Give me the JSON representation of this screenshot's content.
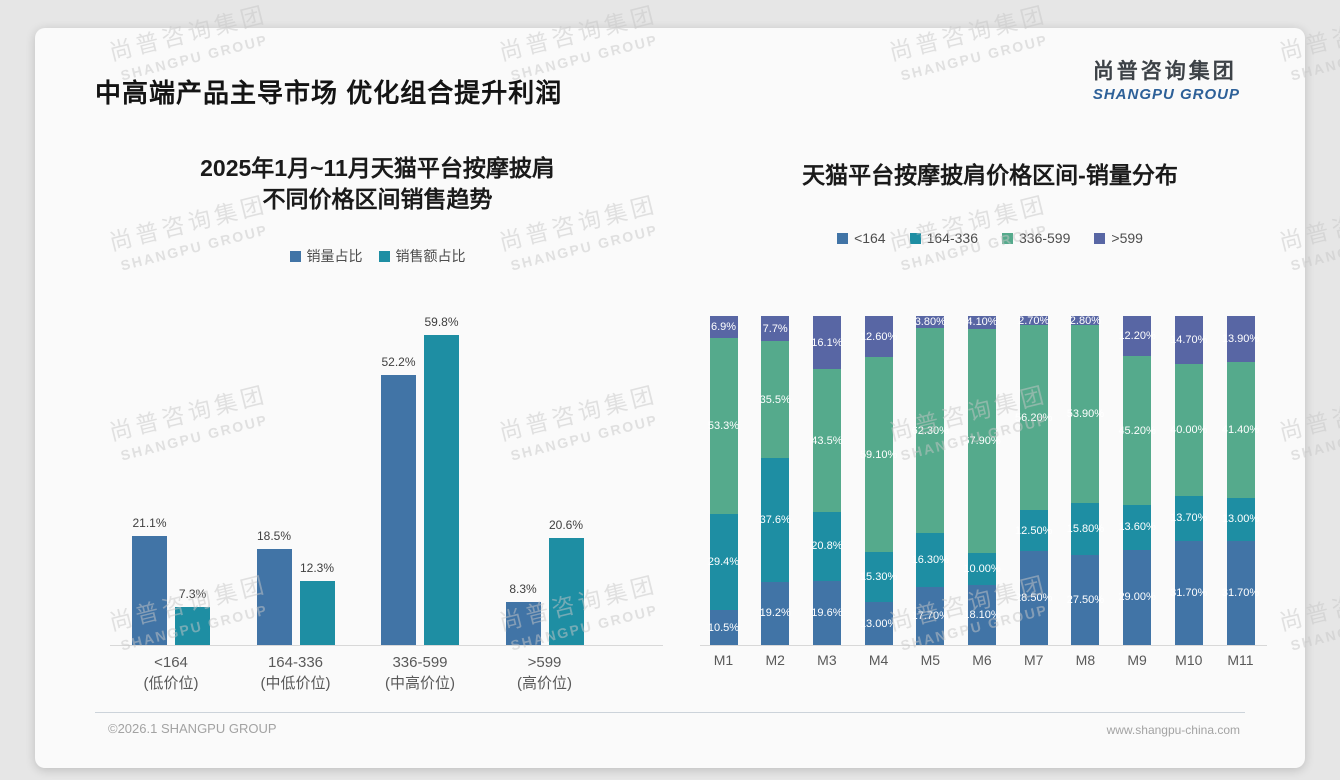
{
  "header": {
    "title": "中高端产品主导市场 优化组合提升利润",
    "logo_cn": "尚普咨询集团",
    "logo_en": "SHANGPU GROUP"
  },
  "watermark": {
    "cn": "尚普咨询集团",
    "en": "SHANGPU GROUP"
  },
  "footer": {
    "copyright": "©2026.1 SHANGPU GROUP",
    "website": "www.shangpu-china.com"
  },
  "chart_data": [
    {
      "id": "price-range-sales-trend",
      "type": "bar",
      "title_lines": [
        "2025年1月~11月天猫平台按摩披肩",
        "不同价格区间销售趋势"
      ],
      "categories": [
        "<164",
        "164-336",
        "336-599",
        ">599"
      ],
      "category_sublabels": [
        "(低价位)",
        "(中低价位)",
        "(中高价位)",
        "(高价位)"
      ],
      "series": [
        {
          "name": "销量占比",
          "color": "#4174A6",
          "values": [
            21.1,
            18.5,
            52.2,
            8.3
          ],
          "labels": [
            "21.1%",
            "18.5%",
            "52.2%",
            "8.3%"
          ]
        },
        {
          "name": "销售额占比",
          "color": "#1E8EA3",
          "values": [
            7.3,
            12.3,
            59.8,
            20.6
          ],
          "labels": [
            "7.3%",
            "12.3%",
            "59.8%",
            "20.6%"
          ]
        }
      ],
      "xlabel": "",
      "ylabel": "",
      "ylim": [
        0,
        64
      ],
      "grid": false,
      "legend_position": "top",
      "value_suffix": "%"
    },
    {
      "id": "monthly-price-range-volume-mix",
      "type": "stacked-bar",
      "title": "天猫平台按摩披肩价格区间-销量分布",
      "categories": [
        "M1",
        "M2",
        "M3",
        "M4",
        "M5",
        "M6",
        "M7",
        "M8",
        "M9",
        "M10",
        "M11"
      ],
      "series": [
        {
          "name": "<164",
          "color": "#4174A6",
          "values": [
            10.5,
            19.2,
            19.6,
            13.0,
            17.7,
            18.1,
            28.5,
            27.5,
            29.0,
            31.7,
            31.7
          ],
          "labels": [
            "10.5%",
            "19.2%",
            "19.6%",
            "13.00%",
            "17.70%",
            "18.10%",
            "28.50%",
            "27.50%",
            "29.00%",
            "31.70%",
            "31.70%"
          ]
        },
        {
          "name": "164-336",
          "color": "#1E8EA3",
          "values": [
            29.4,
            37.6,
            20.8,
            15.3,
            16.3,
            10.0,
            12.5,
            15.8,
            13.6,
            13.7,
            13.0
          ],
          "labels": [
            "29.4%",
            "37.6%",
            "20.8%",
            "15.30%",
            "16.30%",
            "10.00%",
            "12.50%",
            "15.80%",
            "13.60%",
            "13.70%",
            "13.00%"
          ]
        },
        {
          "name": "336-599",
          "color": "#55AA8C",
          "values": [
            53.3,
            35.5,
            43.5,
            59.1,
            62.3,
            67.9,
            56.2,
            53.9,
            45.2,
            40.0,
            41.4
          ],
          "labels": [
            "53.3%",
            "35.5%",
            "43.5%",
            "59.10%",
            "62.30%",
            "67.90%",
            "56.20%",
            "53.90%",
            "45.20%",
            "40.00%",
            "41.40%"
          ]
        },
        {
          "name": ">599",
          "color": "#5866A4",
          "values": [
            6.9,
            7.7,
            16.1,
            12.6,
            3.8,
            4.1,
            2.7,
            2.8,
            12.2,
            14.7,
            13.9
          ],
          "labels": [
            "6.9%",
            "7.7%",
            "16.1%",
            "12.60%",
            "3.80%",
            "4.10%",
            "2.70%",
            "2.80%",
            "12.20%",
            "14.70%",
            "13.90%"
          ]
        }
      ],
      "xlabel": "",
      "ylabel": "",
      "ylim": [
        0,
        100
      ],
      "grid": false,
      "legend_position": "top",
      "value_suffix": "%"
    }
  ]
}
